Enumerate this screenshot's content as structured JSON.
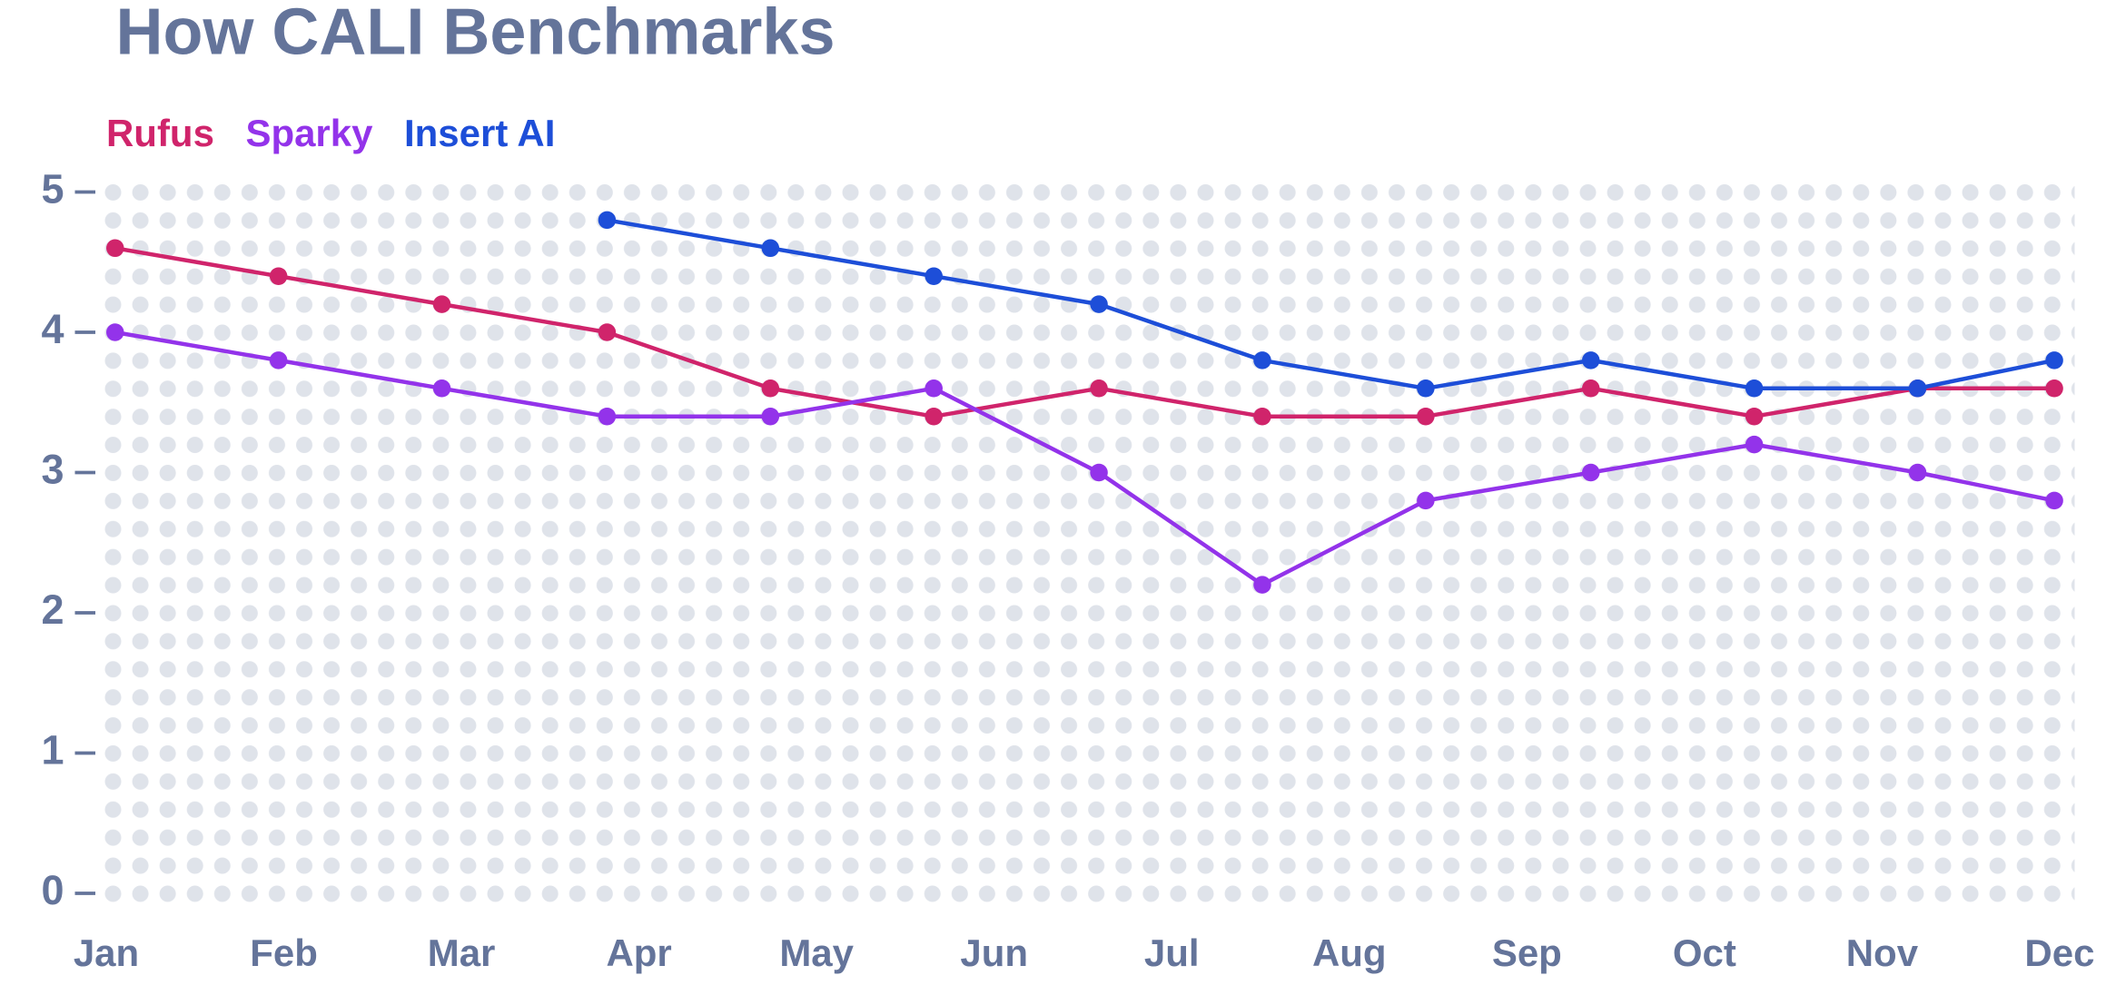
{
  "chart_data": {
    "type": "line",
    "title": "How CALI Benchmarks",
    "x": [
      0.05,
      0.97,
      1.89,
      2.82,
      3.74,
      4.66,
      5.59,
      6.51,
      7.43,
      8.36,
      9.28,
      10.2,
      10.97
    ],
    "xlim": [
      0,
      11
    ],
    "xticks": [
      {
        "value": 0,
        "label": "Jan"
      },
      {
        "value": 1,
        "label": "Feb"
      },
      {
        "value": 2,
        "label": "Mar"
      },
      {
        "value": 3,
        "label": "Apr"
      },
      {
        "value": 4,
        "label": "May"
      },
      {
        "value": 5,
        "label": "Jun"
      },
      {
        "value": 6,
        "label": "Jul"
      },
      {
        "value": 7,
        "label": "Aug"
      },
      {
        "value": 8,
        "label": "Sep"
      },
      {
        "value": 9,
        "label": "Oct"
      },
      {
        "value": 10,
        "label": "Nov"
      },
      {
        "value": 11,
        "label": "Dec"
      }
    ],
    "ylim": [
      0,
      5
    ],
    "yticks": [
      0,
      1,
      2,
      3,
      4,
      5
    ],
    "series": [
      {
        "name": "Rufus",
        "color": "#d0246b",
        "values": [
          4.6,
          4.4,
          4.2,
          4.0,
          3.6,
          3.4,
          3.6,
          3.4,
          3.4,
          3.6,
          3.4,
          3.6,
          3.6
        ]
      },
      {
        "name": "Sparky",
        "color": "#9333ea",
        "values": [
          4.0,
          3.8,
          3.6,
          3.4,
          3.4,
          3.6,
          3.0,
          2.2,
          2.8,
          3.0,
          3.2,
          3.0,
          2.8
        ]
      },
      {
        "name": "Insert AI",
        "color": "#1d4ed8",
        "values": [
          null,
          null,
          null,
          4.8,
          4.6,
          4.4,
          4.2,
          3.8,
          3.6,
          3.8,
          3.6,
          3.6,
          3.8
        ]
      }
    ]
  }
}
